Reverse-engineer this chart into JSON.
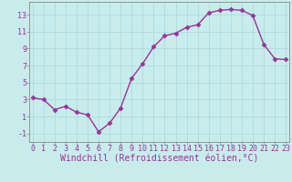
{
  "x": [
    0,
    1,
    2,
    3,
    4,
    5,
    6,
    7,
    8,
    9,
    10,
    11,
    12,
    13,
    14,
    15,
    16,
    17,
    18,
    19,
    20,
    21,
    22,
    23
  ],
  "y": [
    3.2,
    3.0,
    1.8,
    2.2,
    1.5,
    1.2,
    -0.8,
    0.2,
    2.0,
    5.5,
    7.2,
    9.2,
    10.5,
    10.8,
    11.5,
    11.8,
    13.2,
    13.5,
    13.6,
    13.5,
    12.9,
    9.5,
    7.8,
    7.7
  ],
  "line_color": "#993399",
  "marker": "D",
  "marker_size": 2.5,
  "linewidth": 1.0,
  "background_color": "#c8ecec",
  "grid_color": "#a8d8d8",
  "xlabel": "Windchill (Refroidissement éolien,°C)",
  "xlabel_fontsize": 7,
  "xtick_labels": [
    "0",
    "1",
    "2",
    "3",
    "4",
    "5",
    "6",
    "7",
    "8",
    "9",
    "10",
    "11",
    "12",
    "13",
    "14",
    "15",
    "16",
    "17",
    "18",
    "19",
    "20",
    "21",
    "22",
    "23"
  ],
  "ytick_labels": [
    "-1",
    "1",
    "3",
    "5",
    "7",
    "9",
    "11",
    "13"
  ],
  "yticks": [
    -1,
    1,
    3,
    5,
    7,
    9,
    11,
    13
  ],
  "ylim": [
    -2.0,
    14.5
  ],
  "xlim": [
    -0.3,
    23.3
  ],
  "tick_color": "#993399",
  "tick_fontsize": 6,
  "font_family": "monospace",
  "spine_color": "#888888"
}
